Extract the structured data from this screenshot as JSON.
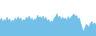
{
  "chart_data": {
    "type": "area",
    "values": [
      55,
      65,
      50,
      60,
      52,
      68,
      55,
      62,
      48,
      58,
      52,
      65,
      55,
      70,
      58,
      65,
      52,
      60,
      55,
      68,
      60,
      72,
      58,
      65,
      52,
      62,
      58,
      75,
      65,
      70,
      60,
      72,
      58,
      68,
      52,
      60,
      48,
      55,
      50,
      65,
      70,
      80,
      65,
      72,
      58,
      68,
      60,
      65,
      55,
      70,
      60,
      68,
      72,
      80,
      70,
      75,
      60,
      65,
      45,
      30,
      15,
      28,
      42,
      38,
      30,
      45,
      52,
      40,
      48,
      38
    ],
    "color": "#72bfe8",
    "ylim": [
      0,
      130
    ],
    "tick_labels": false,
    "grid": false
  }
}
